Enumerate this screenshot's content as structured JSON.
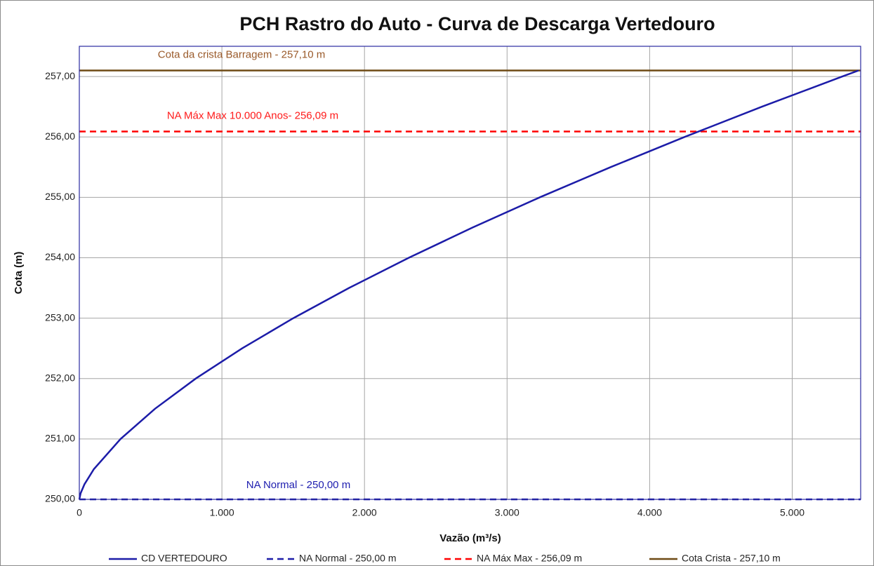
{
  "chart_data": {
    "type": "line",
    "title": "PCH Rastro do Auto - Curva de Descarga Vertedouro",
    "x_label": "Vazão (m³/s)",
    "y_label": "Cota (m)",
    "x": [
      0,
      9,
      36,
      102,
      289,
      531,
      817,
      1142,
      1501,
      1892,
      2311,
      2758,
      3230,
      3726,
      4246,
      4788,
      5351,
      5465
    ],
    "series": [
      {
        "name": "CD VERTEDOURO",
        "color": "#1c1ca8",
        "values": [
          250,
          250.1,
          250.25,
          250.5,
          251,
          251.5,
          252,
          252.5,
          253,
          253.5,
          254,
          254.5,
          255,
          255.5,
          256,
          256.5,
          257,
          257.1
        ]
      }
    ],
    "hlines": [
      {
        "name": "NA Normal - 250,00 m",
        "value": 250,
        "color": "#1c1ca8",
        "dashed": true,
        "annotation": "NA Normal - 250,00 m",
        "annotation_color": "#2020b0"
      },
      {
        "name": "NA Máx Max - 256,09 m",
        "value": 256.09,
        "color": "#ff0000",
        "dashed": true,
        "annotation": "NA Máx Max 10.000 Anos- 256,09 m",
        "annotation_color": "#ff1a1a"
      },
      {
        "name": "Cota Crista - 257,10 m",
        "value": 257.1,
        "color": "#6e4a14",
        "dashed": false,
        "annotation": "Cota da crista Barragem - 257,10 m",
        "annotation_color": "#9a5a2a"
      }
    ],
    "xlim": [
      0,
      5480
    ],
    "ylim": [
      250,
      257.5
    ],
    "xticks": [
      0,
      {
        "value": 1000,
        "label": "1.000"
      },
      {
        "value": 2000,
        "label": "2.000"
      },
      {
        "value": 3000,
        "label": "3.000"
      },
      {
        "value": 4000,
        "label": "4.000"
      },
      {
        "value": 5000,
        "label": "5.000"
      }
    ],
    "yticks": [
      {
        "value": 250,
        "label": "250,00"
      },
      {
        "value": 251,
        "label": "251,00"
      },
      {
        "value": 252,
        "label": "252,00"
      },
      {
        "value": 253,
        "label": "253,00"
      },
      {
        "value": 254,
        "label": "254,00"
      },
      {
        "value": 255,
        "label": "255,00"
      },
      {
        "value": 256,
        "label": "256,00"
      },
      {
        "value": 257,
        "label": "257,00"
      }
    ],
    "grid": true,
    "legend": "bottom"
  }
}
